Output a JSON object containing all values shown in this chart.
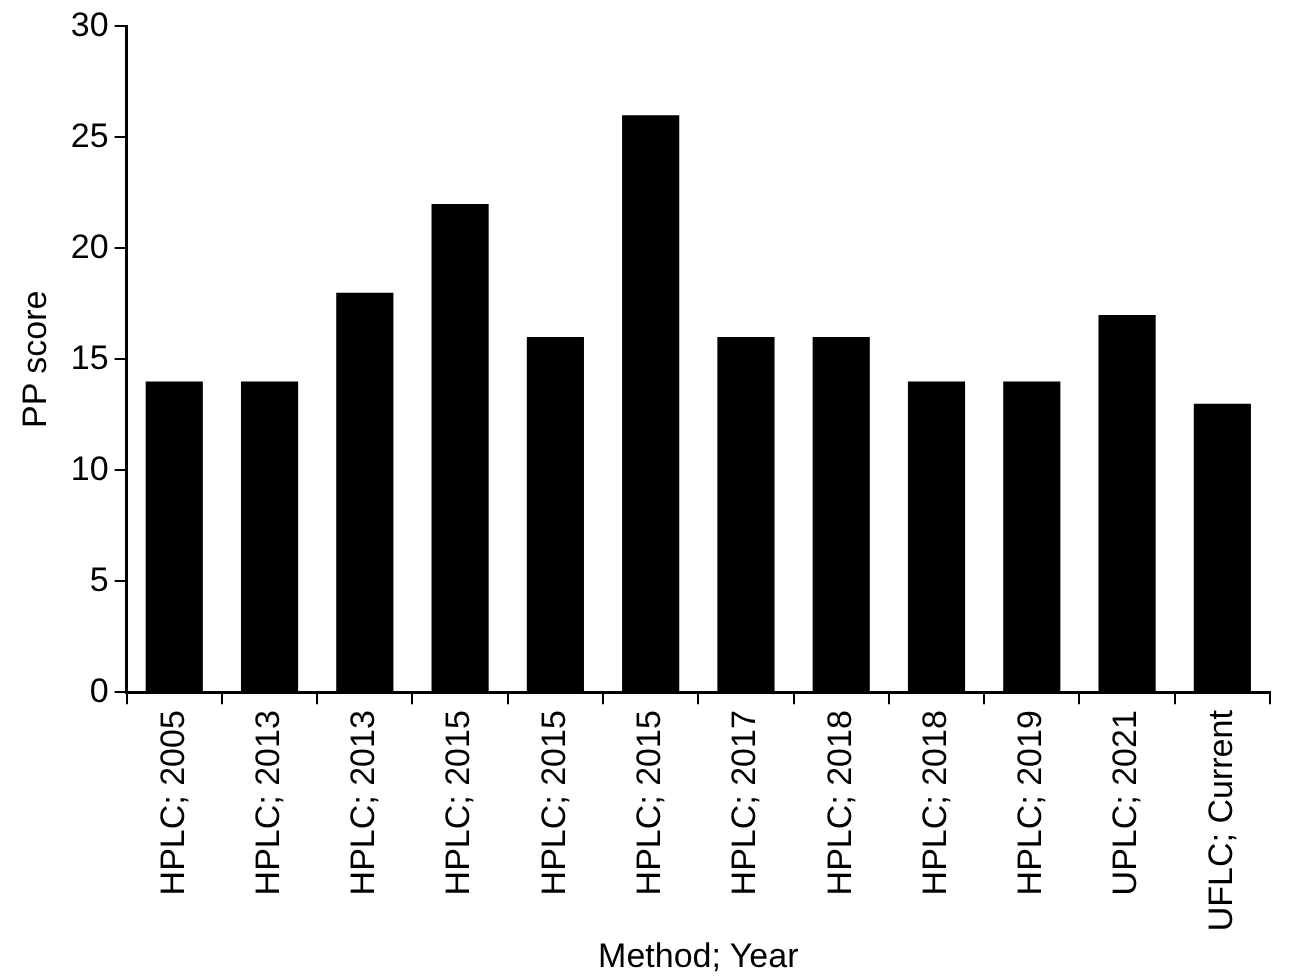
{
  "chart_data": {
    "type": "bar",
    "xlabel": "Method; Year",
    "ylabel": "PP score",
    "categories": [
      "HPLC; 2005",
      "HPLC; 2013",
      "HPLC; 2013",
      "HPLC; 2015",
      "HPLC; 2015",
      "HPLC; 2015",
      "HPLC; 2017",
      "HPLC; 2018",
      "HPLC; 2018",
      "HPLC; 2019",
      "UPLC; 2021",
      "UFLC; Current"
    ],
    "values": [
      14,
      14,
      18,
      22,
      16,
      26,
      16,
      16,
      14,
      14,
      17,
      13
    ],
    "color": "#000000",
    "ylim": [
      0,
      30
    ],
    "yticks": [
      0,
      5,
      10,
      15,
      20,
      25,
      30
    ],
    "grid": false,
    "legend": false
  }
}
